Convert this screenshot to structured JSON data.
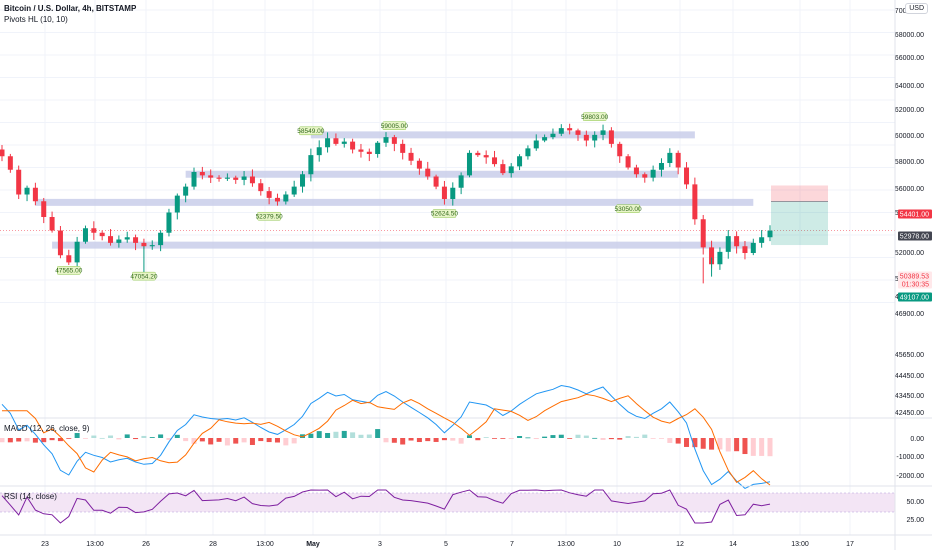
{
  "header": {
    "title": "Bitcoin / U.S. Dollar, 4h, BITSTAMP",
    "indicator": "Pivots HL (10, 10)",
    "currency": "USD"
  },
  "price_axis": {
    "labels": [
      "70000.00",
      "68000.00",
      "66000.00",
      "64000.00",
      "62000.00",
      "60000.00",
      "58000.00",
      "56000.00",
      "54000.00",
      "52000.00",
      "50000.00",
      "48000.00",
      "46900.00",
      "45650.00",
      "44450.00",
      "43450.00",
      "42450.00"
    ],
    "badges": [
      {
        "text": "54401.00",
        "price": 54401,
        "color": "#f23645",
        "text_color": "#ffffff"
      },
      {
        "text": "52978.00",
        "price": 52978,
        "color": "#434651",
        "text_color": "#ffffff"
      },
      {
        "text": "50389.53",
        "price": 50389.53,
        "color": "#ffe8ea",
        "text_color": "#f23645"
      },
      {
        "text": "01:30:35",
        "price": 49820,
        "color": "#ffe8ea",
        "text_color": "#f23645"
      },
      {
        "text": "49107.00",
        "price": 49107,
        "color": "#089981",
        "text_color": "#ffffff"
      }
    ]
  },
  "time_axis": {
    "labels": [
      "23",
      "13:00",
      "26",
      "28",
      "13:00",
      "May",
      "3",
      "5",
      "7",
      "13:00",
      "10",
      "12",
      "14",
      "13:00",
      "17"
    ]
  },
  "macd": {
    "title": "MACD (12, 26, close, 9)",
    "axis": [
      "0.00",
      "-1000.00",
      "-2000.00"
    ],
    "colors": {
      "macd": "#2196f3",
      "signal": "#ff6d00",
      "hist_up": "#26a69a",
      "hist_up_light": "#b2dfdb",
      "hist_down": "#ef5350",
      "hist_down_light": "#ffcdd2"
    }
  },
  "rsi": {
    "title": "RSI (14, close)",
    "axis": [
      "50.00",
      "25.00"
    ],
    "line_color": "#7e1fa0",
    "band_color": "#f3e5f5"
  },
  "chart_data": {
    "type": "candlestick",
    "symbol": "BTCUSD",
    "interval": "4h",
    "exchange": "BITSTAMP",
    "ylim": [
      42450,
      70000
    ],
    "close_path": [
      57000,
      55800,
      53600,
      54200,
      53000,
      51600,
      50400,
      48200,
      47565,
      49400,
      50600,
      50200,
      49900,
      49300,
      49600,
      49800,
      49300,
      49000,
      49100,
      50200,
      52000,
      53500,
      54300,
      55600,
      55300,
      55100,
      55000,
      55100,
      54900,
      55200,
      54600,
      53900,
      53300,
      52980,
      53600,
      54300,
      55400,
      57100,
      57800,
      58600,
      58100,
      58300,
      57600,
      57400,
      57200,
      58200,
      58700,
      58100,
      57300,
      56600,
      55900,
      55200,
      54300,
      53200,
      54200,
      55300,
      57300,
      57100,
      56900,
      56300,
      55500,
      56100,
      57000,
      57700,
      58400,
      58700,
      59000,
      59500,
      59300,
      58900,
      58400,
      58900,
      59300,
      58100,
      57000,
      56000,
      55400,
      55100,
      55800,
      56400,
      57300,
      56000,
      54500,
      51400,
      48900,
      47400,
      48500,
      49900,
      49000,
      48400,
      49300,
      49800,
      50390
    ],
    "pivot_labels": [
      {
        "text": "58549.00",
        "price": 58549,
        "index": 37
      },
      {
        "text": "59005.00",
        "price": 59005,
        "index": 47
      },
      {
        "text": "59803.00",
        "price": 59803,
        "index": 71
      },
      {
        "text": "52379.50",
        "price": 52379.5,
        "index": 32
      },
      {
        "text": "52624.50",
        "price": 52624.5,
        "index": 53
      },
      {
        "text": "53050.00",
        "price": 53050,
        "index": 75
      },
      {
        "text": "47565.00",
        "price": 47565,
        "index": 8
      },
      {
        "text": "47054.20",
        "price": 47054.2,
        "index": 17
      }
    ],
    "zones": [
      {
        "price": 58900,
        "from_index": 37,
        "to_index": 83
      },
      {
        "price": 55400,
        "from_index": 22,
        "to_index": 81
      },
      {
        "price": 52900,
        "from_index": 4,
        "to_index": 90
      },
      {
        "price": 49100,
        "from_index": 6,
        "to_index": 90
      }
    ],
    "position": {
      "entry": 52978,
      "stop": 54401,
      "target": 49107
    },
    "last_price": 50389.53
  }
}
